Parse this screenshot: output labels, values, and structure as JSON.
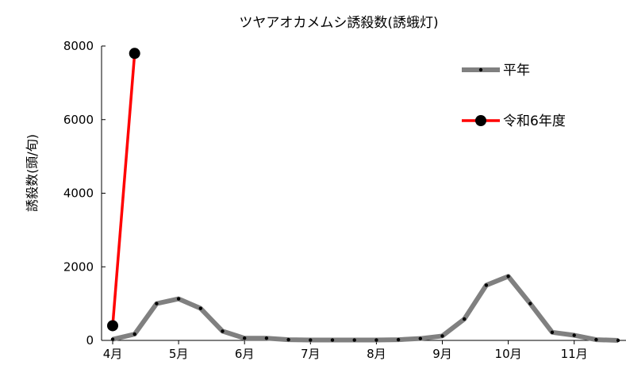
{
  "chart_data": {
    "type": "line",
    "title": "ツヤアオカメムシ誘殺数(誘蛾灯)",
    "xlabel": "",
    "ylabel": "誘殺数(頭/旬)",
    "ylim": [
      0,
      8000
    ],
    "yticks": [
      0,
      2000,
      4000,
      6000,
      8000
    ],
    "yticklabels": [
      "0",
      "2000",
      "4000",
      "6000",
      "8000"
    ],
    "xticklabels": [
      "4月",
      "5月",
      "6月",
      "7月",
      "8月",
      "9月",
      "10月",
      "11月"
    ],
    "xtick_positions": [
      0,
      3,
      6,
      9,
      12,
      15,
      18,
      21
    ],
    "grid": false,
    "legend_position": "top-right",
    "series": [
      {
        "name": "平年",
        "color": "#808080",
        "x": [
          0,
          1,
          2,
          3,
          4,
          5,
          6,
          7,
          8,
          9,
          10,
          11,
          12,
          13,
          14,
          15,
          16,
          17,
          18,
          19,
          20,
          21,
          22,
          23
        ],
        "values": [
          30,
          170,
          1000,
          1130,
          870,
          250,
          60,
          60,
          20,
          10,
          10,
          10,
          10,
          20,
          50,
          120,
          580,
          1500,
          1740,
          1000,
          220,
          140,
          20,
          0
        ]
      },
      {
        "name": "令和6年度",
        "color": "#ff0000",
        "x": [
          0,
          1
        ],
        "values": [
          400,
          7800
        ]
      }
    ]
  }
}
